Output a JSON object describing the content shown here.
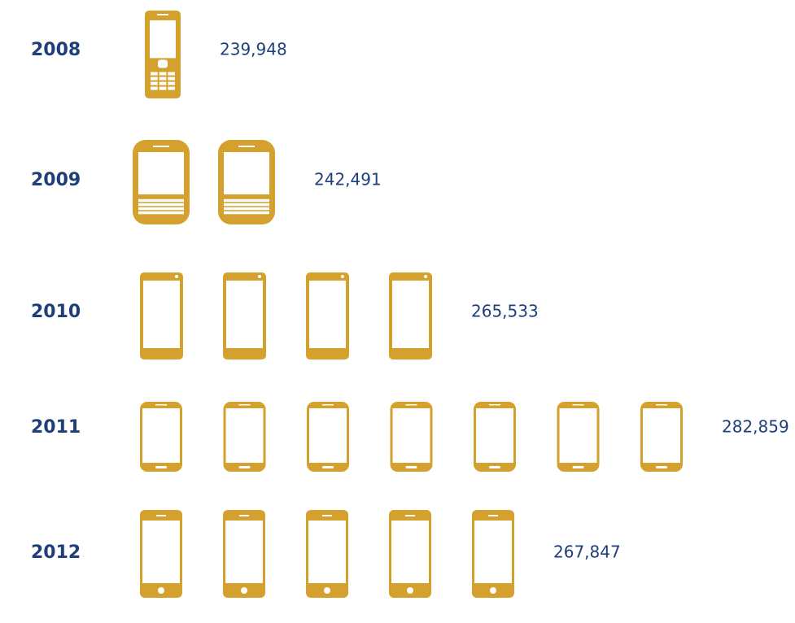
{
  "chart_data": {
    "type": "pictograph",
    "categories": [
      "2008",
      "2009",
      "2010",
      "2011",
      "2012"
    ],
    "values": [
      239948,
      242491,
      265533,
      282859,
      267847
    ],
    "value_labels": [
      "239,948",
      "242,491",
      "265,533",
      "282,859",
      "267,847"
    ],
    "icons": [
      1,
      2,
      4,
      7,
      5
    ],
    "color": "#d4a12e",
    "label_color": "#1f3f7a"
  }
}
